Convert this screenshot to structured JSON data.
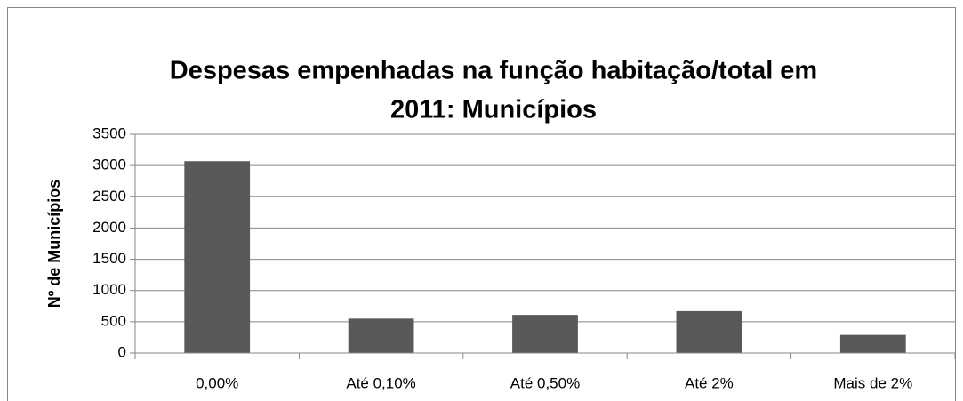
{
  "chart_data": {
    "type": "bar",
    "title": [
      "Despesas empenhadas na função habitação/total em",
      "2011: Municípios"
    ],
    "y_label": "Nº de Municípios",
    "categories": [
      "0,00%",
      "Até 0,10%",
      "Até 0,50%",
      "Até 2%",
      "Mais de 2%"
    ],
    "values": [
      3070,
      550,
      610,
      670,
      290
    ],
    "color": "#595959",
    "ylim": [
      0,
      3500
    ],
    "yticks": [
      0,
      500,
      1000,
      1500,
      2000,
      2500,
      3000,
      3500
    ],
    "grid": true
  }
}
